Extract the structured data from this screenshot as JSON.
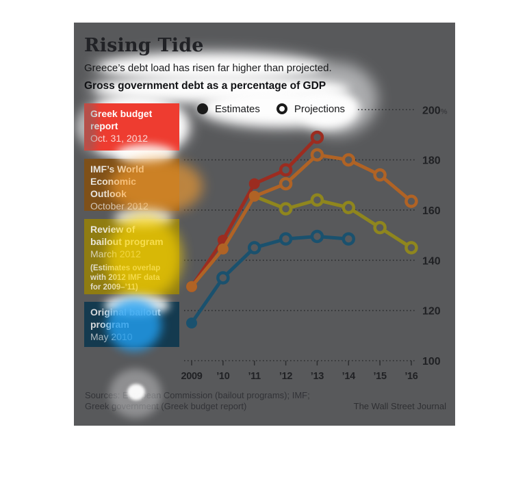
{
  "header": {
    "title": "Rising Tide",
    "subtitle": "Greece’s debt load has risen far higher than projected.",
    "chart_title": "Gross government debt as a percentage of GDP"
  },
  "legend": {
    "estimates_label": "Estimates",
    "projections_label": "Projections"
  },
  "callouts": [
    {
      "line1": "Greek budget",
      "line2": "report",
      "date": "Oct. 31, 2012",
      "color": "#ee3c30"
    },
    {
      "line1": "IMF’s World",
      "line2": "Economic Outlook",
      "date": "October 2012",
      "color": "#7f5018"
    },
    {
      "line1": "Review of",
      "line2": "bailout program",
      "date": "March 2012",
      "note1": "(Estimates overlap",
      "note2": "with 2012 IMF data",
      "note3": "for 2009–’11)",
      "color": "#8f7c12"
    },
    {
      "line1": "Original bailout",
      "line2": "program",
      "date": "May 2010",
      "color": "#143a4f"
    }
  ],
  "chart_data": {
    "type": "line",
    "title": "Gross government debt as a percentage of GDP",
    "x_labels": [
      "2009",
      "’10",
      "’11",
      "’12",
      "’13",
      "’14",
      "’15",
      "’16"
    ],
    "x_years": [
      2009,
      2010,
      2011,
      2012,
      2013,
      2014,
      2015,
      2016
    ],
    "ylim": [
      100,
      200
    ],
    "yticks": [
      100,
      120,
      140,
      160,
      180,
      200
    ],
    "ytick_labels": [
      "100",
      "120",
      "140",
      "160",
      "180",
      "200%"
    ],
    "grid": "horizontal-dotted",
    "legend_position": "top",
    "marker_legend": {
      "filled": "Estimates",
      "open": "Projections"
    },
    "series": [
      {
        "name": "Review of bailout program (March 2012)",
        "color": "#8f861e",
        "points": [
          {
            "x": 2011,
            "y": 165.5,
            "marker": "none"
          },
          {
            "x": 2012,
            "y": 160.5,
            "marker": "open"
          },
          {
            "x": 2013,
            "y": 164,
            "marker": "open"
          },
          {
            "x": 2014,
            "y": 161,
            "marker": "open"
          },
          {
            "x": 2015,
            "y": 153,
            "marker": "open"
          },
          {
            "x": 2016,
            "y": 145,
            "marker": "open"
          }
        ]
      },
      {
        "name": "Greek budget report (Oct. 31, 2012)",
        "color": "#9c2c20",
        "points": [
          {
            "x": 2009,
            "y": 129.5,
            "marker": "filled"
          },
          {
            "x": 2010,
            "y": 148,
            "marker": "filled"
          },
          {
            "x": 2011,
            "y": 170.5,
            "marker": "filled"
          },
          {
            "x": 2012,
            "y": 176,
            "marker": "open"
          },
          {
            "x": 2013,
            "y": 189,
            "marker": "open"
          }
        ]
      },
      {
        "name": "IMF’s World Economic Outlook (October 2012)",
        "color": "#b06325",
        "points": [
          {
            "x": 2009,
            "y": 129.5,
            "marker": "filled"
          },
          {
            "x": 2010,
            "y": 144.5,
            "marker": "filled"
          },
          {
            "x": 2011,
            "y": 165.5,
            "marker": "filled"
          },
          {
            "x": 2012,
            "y": 170.5,
            "marker": "open"
          },
          {
            "x": 2013,
            "y": 182,
            "marker": "open"
          },
          {
            "x": 2014,
            "y": 180,
            "marker": "open"
          },
          {
            "x": 2015,
            "y": 174,
            "marker": "open"
          },
          {
            "x": 2016,
            "y": 163.5,
            "marker": "open"
          }
        ]
      },
      {
        "name": "Original bailout program (May 2010)",
        "color": "#1a516e",
        "points": [
          {
            "x": 2009,
            "y": 115,
            "marker": "filled"
          },
          {
            "x": 2010,
            "y": 133,
            "marker": "open"
          },
          {
            "x": 2011,
            "y": 145,
            "marker": "open"
          },
          {
            "x": 2012,
            "y": 148.5,
            "marker": "open"
          },
          {
            "x": 2013,
            "y": 149.5,
            "marker": "open"
          },
          {
            "x": 2014,
            "y": 148.5,
            "marker": "open"
          }
        ]
      }
    ]
  },
  "footer": {
    "sources_line1": "Sources: European Commission (bailout programs); IMF;",
    "sources_line2": "Greek government (Greek budget report)",
    "credit": "The Wall Street Journal"
  },
  "colors": {
    "panel_bg": "#58595b",
    "grid": "#2c2d2f",
    "legend_marker": "#1a1a1a"
  }
}
